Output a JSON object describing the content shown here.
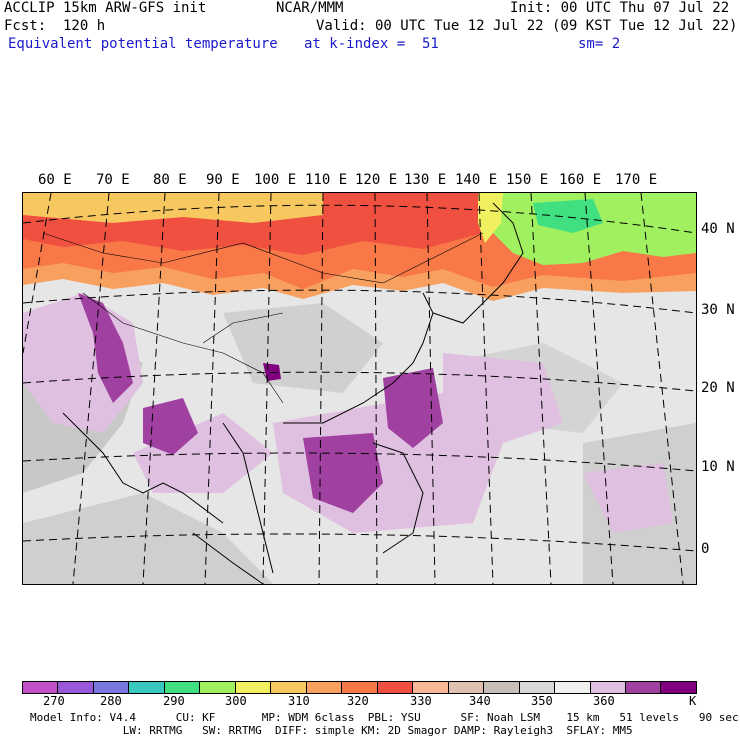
{
  "header": {
    "model_title": "ACCLIP 15km ARW-GFS init",
    "org": "NCAR/MMM",
    "init": "Init: 00 UTC Thu 07 Jul 22",
    "fcst": "Fcst:  120 h",
    "valid": "Valid: 00 UTC Tue 12 Jul 22 (09 KST Tue 12 Jul 22)",
    "field": "Equivalent potential temperature",
    "level": "at k-index =  51",
    "smooth": "sm= 2"
  },
  "map": {
    "lon_labels": [
      "60 E",
      "70 E",
      "80 E",
      "90 E",
      "100 E",
      "110 E",
      "120 E",
      "130 E",
      "140 E",
      "150 E",
      "160 E",
      "170 E"
    ],
    "lat_labels": [
      "40 N",
      "30 N",
      "20 N",
      "10 N",
      "0"
    ]
  },
  "colorbar": {
    "labels": [
      "270",
      "280",
      "290",
      "300",
      "310",
      "320",
      "330",
      "340",
      "350",
      "360"
    ],
    "unit": "K",
    "colors": [
      "#c050c8",
      "#9858d8",
      "#7878e0",
      "#38c8c0",
      "#40e080",
      "#a0f060",
      "#f0f060",
      "#f8c860",
      "#f8a060",
      "#f87848",
      "#f05040",
      "#f8b898",
      "#e0c0b0",
      "#c8c0b8",
      "#d8d8d8",
      "#f0f0f0",
      "#e0c0e0",
      "#a040a0",
      "#800080"
    ]
  },
  "footer": {
    "line1": "Model Info: V4.4      CU: KF       MP: WDM 6class  PBL: YSU      SF: Noah LSM    15 km   51 levels   90 sec",
    "line2": "              LW: RRTMG   SW: RRTMG  DIFF: simple KM: 2D Smagor DAMP: Rayleigh3  SFLAY: MM5"
  }
}
